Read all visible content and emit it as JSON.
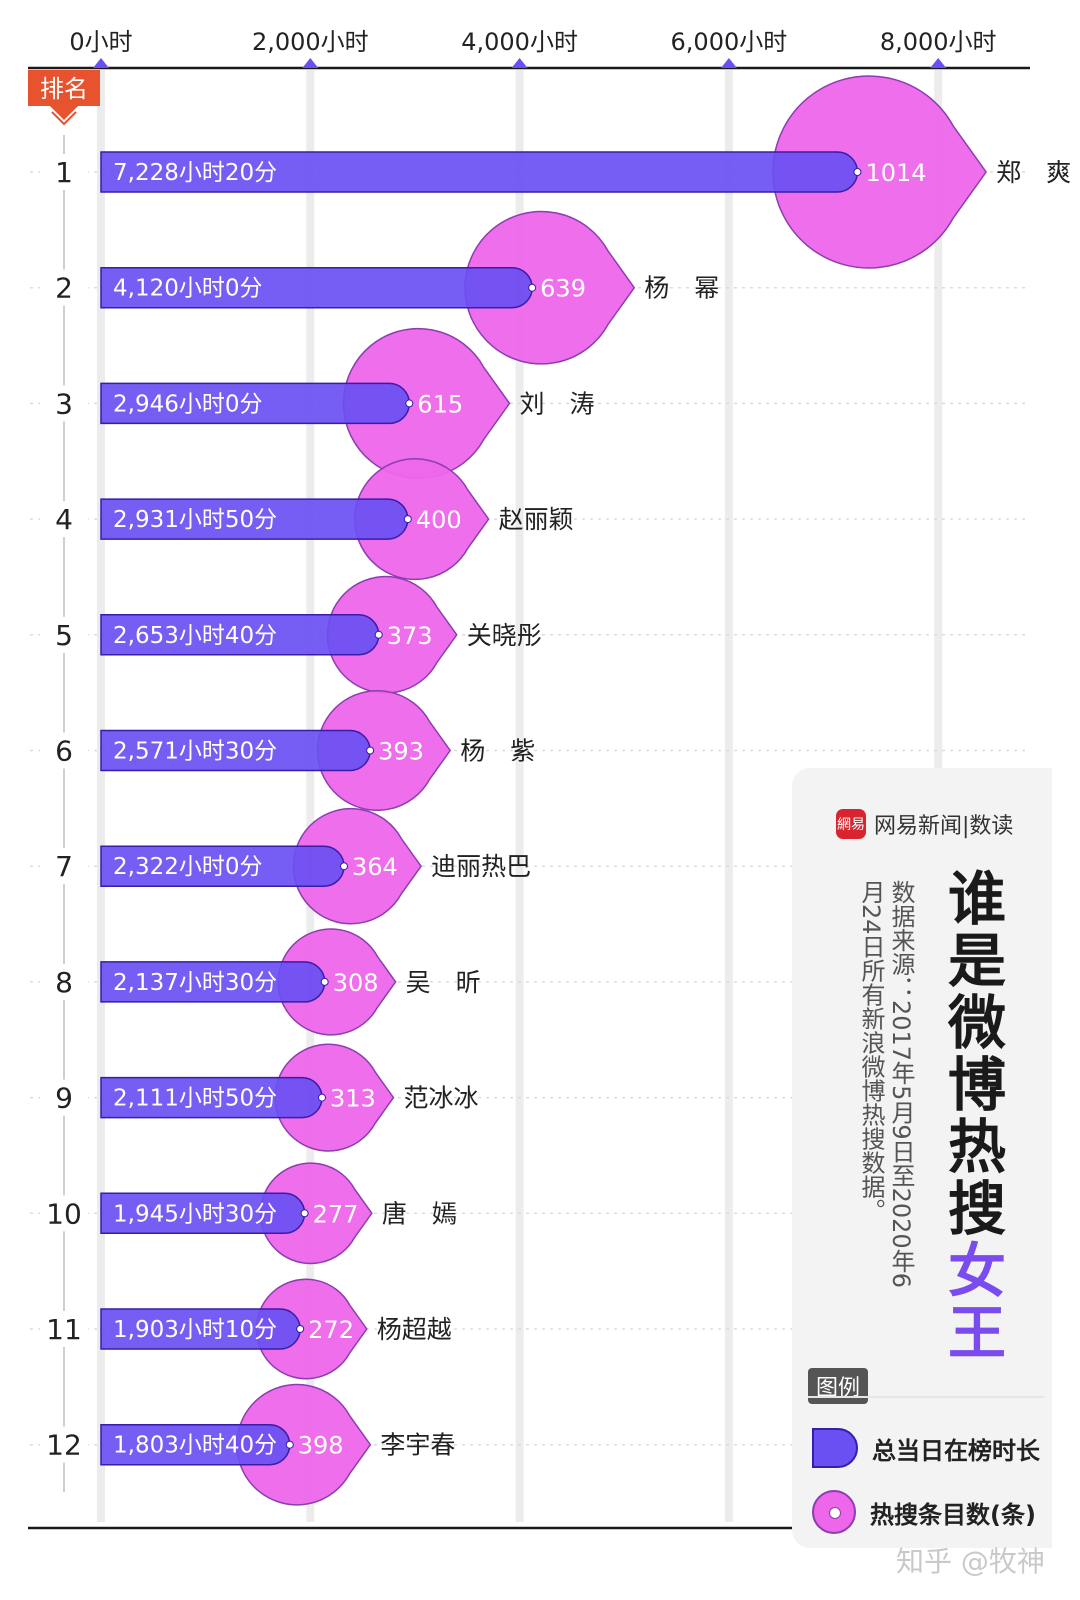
{
  "chart_data": {
    "type": "bar",
    "x_axis": {
      "unit": "小时",
      "xlim": [
        0,
        9000
      ],
      "ticks": [
        0,
        2000,
        4000,
        6000,
        8000
      ],
      "tick_labels": [
        "0小时",
        "2,000小时",
        "4,000小时",
        "6,000小时",
        "8,000小时"
      ]
    },
    "rank_header": "排名",
    "series": [
      {
        "name": "总当日在榜时长",
        "color": "#6a4ff2"
      },
      {
        "name": "热搜条目数(条)",
        "color": "#ee66ea"
      }
    ],
    "rows": [
      {
        "rank": "1",
        "name": "郑　爽",
        "hours": 7228.33,
        "duration_label": "7,228小时20分",
        "count": 1014,
        "count_label": "1014"
      },
      {
        "rank": "2",
        "name": "杨　幂",
        "hours": 4120.0,
        "duration_label": "4,120小时0分",
        "count": 639,
        "count_label": "639"
      },
      {
        "rank": "3",
        "name": "刘　涛",
        "hours": 2946.0,
        "duration_label": "2,946小时0分",
        "count": 615,
        "count_label": "615"
      },
      {
        "rank": "4",
        "name": "赵丽颖",
        "hours": 2931.83,
        "duration_label": "2,931小时50分",
        "count": 400,
        "count_label": "400"
      },
      {
        "rank": "5",
        "name": "关晓彤",
        "hours": 2653.67,
        "duration_label": "2,653小时40分",
        "count": 373,
        "count_label": "373"
      },
      {
        "rank": "6",
        "name": "杨　紫",
        "hours": 2571.5,
        "duration_label": "2,571小时30分",
        "count": 393,
        "count_label": "393"
      },
      {
        "rank": "7",
        "name": "迪丽热巴",
        "hours": 2322.0,
        "duration_label": "2,322小时0分",
        "count": 364,
        "count_label": "364"
      },
      {
        "rank": "8",
        "name": "吴　昕",
        "hours": 2137.5,
        "duration_label": "2,137小时30分",
        "count": 308,
        "count_label": "308"
      },
      {
        "rank": "9",
        "name": "范冰冰",
        "hours": 2111.83,
        "duration_label": "2,111小时50分",
        "count": 313,
        "count_label": "313"
      },
      {
        "rank": "10",
        "name": "唐　嫣",
        "hours": 1945.5,
        "duration_label": "1,945小时30分",
        "count": 277,
        "count_label": "277"
      },
      {
        "rank": "11",
        "name": "杨超越",
        "hours": 1903.17,
        "duration_label": "1,903小时10分",
        "count": 272,
        "count_label": "272"
      },
      {
        "rank": "12",
        "name": "李宇春",
        "hours": 1803.67,
        "duration_label": "1,803小时40分",
        "count": 398,
        "count_label": "398"
      }
    ]
  },
  "panel": {
    "brand": "网易新闻|数读",
    "brand_logo": "網易",
    "title_main": "谁是微博热搜",
    "title_accent": "女王",
    "source": "数据来源：2017年5月9日至2020年6月24日所有新浪微博热搜数据。",
    "legend_title": "图例",
    "legend_bar": "总当日在榜时长",
    "legend_bubble": "热搜条目数(条)"
  },
  "watermark": "知乎 @牧神"
}
